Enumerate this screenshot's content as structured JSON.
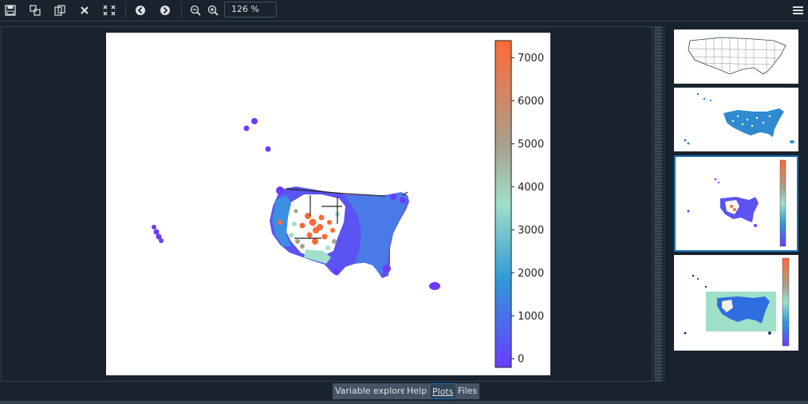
{
  "toolbar": {
    "buttons": [
      {
        "name": "save-icon",
        "glyph": "🖫"
      },
      {
        "name": "save-all-icon",
        "glyph": "⧉"
      },
      {
        "name": "copy-icon",
        "glyph": "❐"
      },
      {
        "name": "close-icon",
        "glyph": "✖"
      },
      {
        "name": "close-all-icon",
        "glyph": "✵"
      },
      {
        "name": "previous-icon",
        "glyph": "←"
      },
      {
        "name": "next-icon",
        "glyph": "→"
      },
      {
        "name": "zoom-out-icon",
        "glyph": "⊖"
      },
      {
        "name": "zoom-in-icon",
        "glyph": "⊕"
      }
    ],
    "zoom_value": "126 %",
    "menu_icon": "hamburger-menu-icon"
  },
  "chart_data": {
    "type": "scatter",
    "colorbar": {
      "ticks": [
        0,
        1000,
        2000,
        3000,
        4000,
        5000,
        6000,
        7000
      ],
      "range": [
        -200,
        7400
      ],
      "colormap": [
        "#6a3cff",
        "#2f9ad8",
        "#9fe0c8",
        "#a8a08e",
        "#ff6a36"
      ]
    }
  },
  "thumbnails": [
    "us-map-outline",
    "us-scatter-blue",
    "us-scatter-colorbar",
    "us-scatter-filled-colorbar"
  ],
  "tabs": [
    "Variable explorer",
    "Help",
    "Plots",
    "Files"
  ],
  "active_tab": "Plots"
}
